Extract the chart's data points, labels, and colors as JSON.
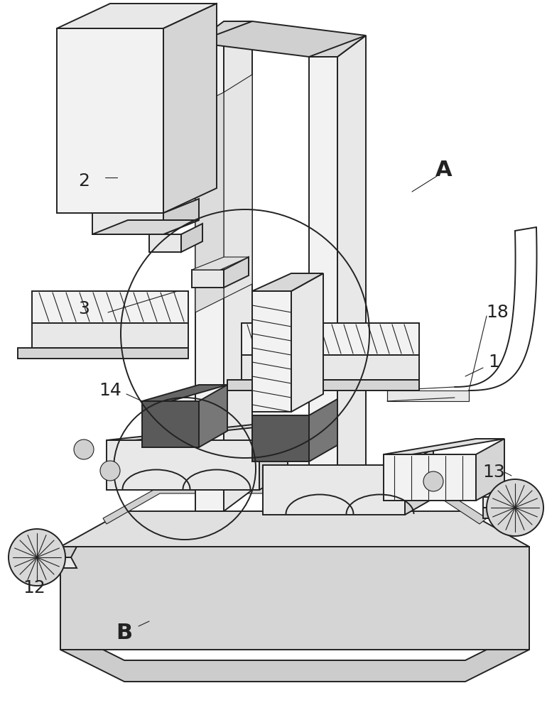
{
  "bg_color": "#ffffff",
  "lc": "#222222",
  "lw": 1.4,
  "lw_thin": 0.8,
  "dark_gray": "#5a5a5a",
  "mid_gray": "#b0b0b0",
  "light_gray": "#e8e8e8",
  "lighter_gray": "#f2f2f2",
  "hatch_gray": "#888888",
  "label_fontsize": 18
}
